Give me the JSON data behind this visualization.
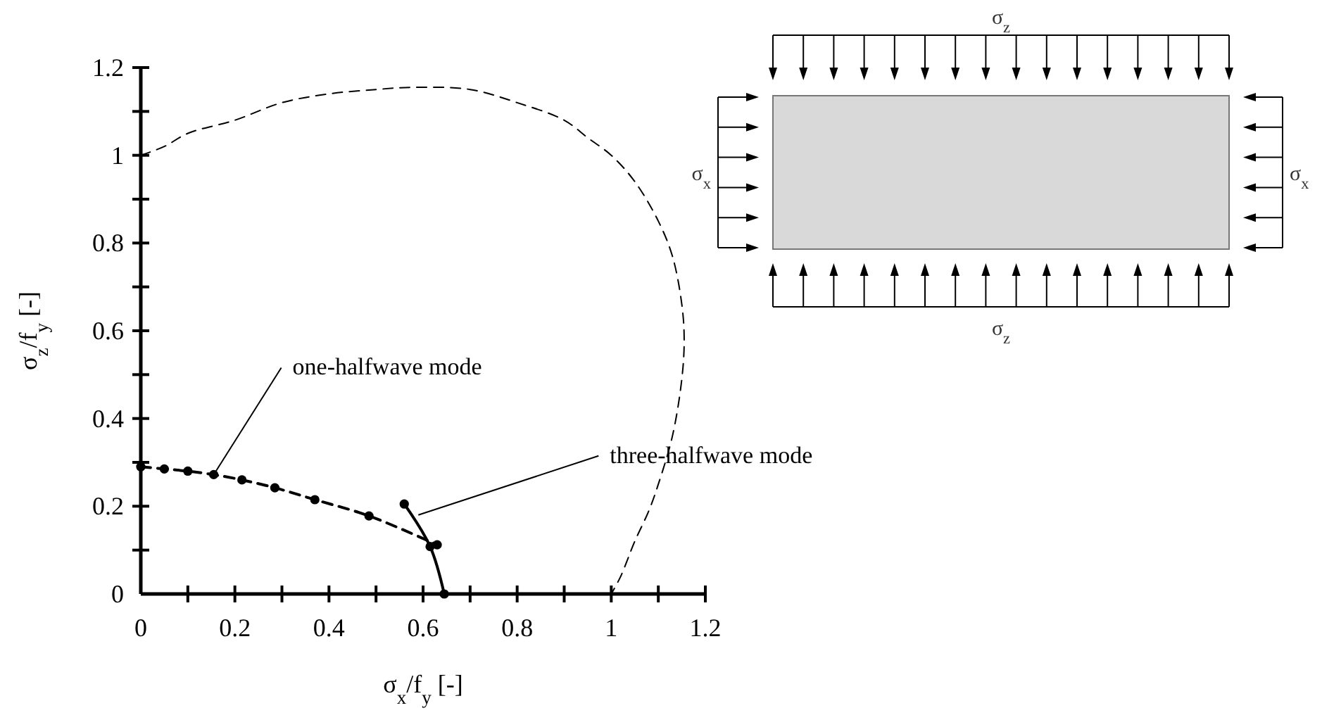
{
  "chart_data": {
    "type": "line",
    "xlabel": "σ$_{x}$/f$_{y}$ [-]",
    "ylabel": "σ$_{z}$/f$_{y}$ [-]",
    "xlim": [
      0,
      1.2
    ],
    "ylim": [
      0,
      1.2
    ],
    "xticks": [
      0,
      {
        "value": 0.1,
        "label": null
      },
      0.2,
      {
        "value": 0.3,
        "label": null
      },
      0.4,
      {
        "value": 0.5,
        "label": null
      },
      0.6,
      {
        "value": 0.7,
        "label": null
      },
      0.8,
      {
        "value": 0.9,
        "label": null
      },
      1,
      {
        "value": 1.1,
        "label": null
      },
      1.2
    ],
    "yticks": [
      0,
      {
        "value": 0.1,
        "label": null
      },
      0.2,
      {
        "value": 0.3,
        "label": null
      },
      0.4,
      {
        "value": 0.5,
        "label": null
      },
      0.6,
      {
        "value": 0.7,
        "label": null
      },
      0.8,
      {
        "value": 0.9,
        "label": null
      },
      1,
      {
        "value": 1.1,
        "label": null
      },
      1.2
    ],
    "series": [
      {
        "color": "#000000",
        "line_style": "dashed",
        "marker": "none",
        "x": [
          0,
          0.05,
          0.1,
          0.2,
          0.3,
          0.4,
          0.5,
          0.58,
          0.7,
          0.8,
          0.9,
          0.95,
          1.0,
          1.05,
          1.1,
          1.13,
          1.15,
          1.155,
          1.15,
          1.13,
          1.1,
          1.08,
          1.05,
          1.02,
          1.0
        ],
        "values": [
          1,
          1.02,
          1.05,
          1.08,
          1.12,
          1.14,
          1.15,
          1.155,
          1.15,
          1.12,
          1.08,
          1.04,
          1.0,
          0.94,
          0.85,
          0.77,
          0.66,
          0.58,
          0.49,
          0.36,
          0.25,
          0.19,
          0.12,
          0.04,
          0
        ]
      },
      {
        "color": "#000000",
        "line_style": "dashed",
        "marker": "circle",
        "x": [
          0,
          0.05,
          0.1,
          0.155,
          0.215,
          0.285,
          0.37,
          0.485,
          0.63
        ],
        "values": [
          0.29,
          0.285,
          0.28,
          0.272,
          0.26,
          0.242,
          0.215,
          0.178,
          0.112
        ]
      },
      {
        "color": "#000000",
        "line_style": "solid",
        "marker": "circle",
        "x": [
          0.56,
          0.615,
          0.645
        ],
        "values": [
          0.205,
          0.108,
          0
        ]
      }
    ],
    "annotations": [
      {
        "text": "one-halfwave mode",
        "x": 0.155,
        "y": 0.272
      },
      {
        "text": "three-halfwave mode",
        "x": 0.59,
        "y": 0.18
      },
      "σ$_{z}$",
      "σ$_{z}$",
      "σ$_{x}$",
      "σ$_{x}$"
    ]
  }
}
